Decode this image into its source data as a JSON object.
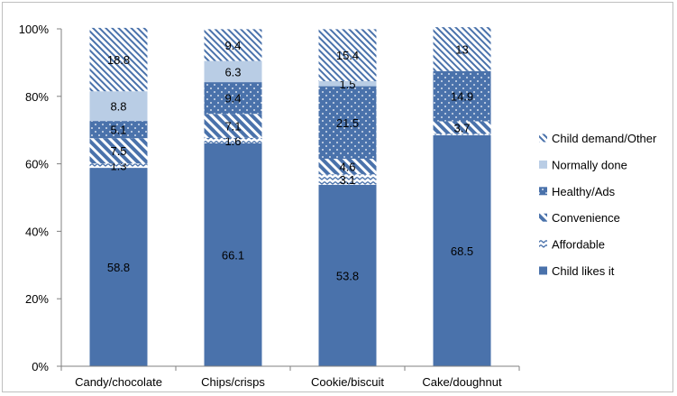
{
  "chart_data": {
    "type": "bar",
    "stacked": true,
    "percent_stacked": true,
    "categories": [
      "Candy/chocolate",
      "Chips/crisps",
      "Cookie/biscuit",
      "Cake/doughnut"
    ],
    "series": [
      {
        "name": "Child likes it",
        "values": [
          58.8,
          66.1,
          53.8,
          68.5
        ],
        "color": "#4a72ab",
        "pattern": "solid",
        "labels": [
          "58.8",
          "66.1",
          "53.8",
          "68.5"
        ]
      },
      {
        "name": "Affordable",
        "values": [
          1.3,
          1.6,
          3.1,
          0.4
        ],
        "color": "#4a72ab",
        "pattern": "wave",
        "labels": [
          "1.3",
          "1.6",
          "3.1",
          ""
        ]
      },
      {
        "name": "Convenience",
        "values": [
          7.5,
          7.1,
          4.6,
          3.7
        ],
        "color": "#4a72ab",
        "pattern": "wide-diagonal",
        "labels": [
          "7.5",
          "7.1",
          "4.6",
          "3.7"
        ]
      },
      {
        "name": "Healthy/Ads",
        "values": [
          5.1,
          9.4,
          21.5,
          14.9
        ],
        "color": "#4a72ab",
        "pattern": "dots",
        "labels": [
          "5.1",
          "9.4",
          "21.5",
          "14.9"
        ]
      },
      {
        "name": "Normally done",
        "values": [
          8.8,
          6.3,
          1.5,
          0
        ],
        "color": "#b9cde5",
        "pattern": "solid",
        "labels": [
          "8.8",
          "6.3",
          "1.5",
          ""
        ]
      },
      {
        "name": "Child demand/Other",
        "values": [
          18.8,
          9.4,
          15.4,
          13
        ],
        "color": "#4a72ab",
        "pattern": "light-diagonal",
        "labels": [
          "18.8",
          "9.4",
          "15.4",
          "13"
        ]
      }
    ],
    "y_ticks": [
      "0%",
      "20%",
      "40%",
      "60%",
      "80%",
      "100%"
    ],
    "ylim": [
      0,
      100
    ],
    "grid": false,
    "legend_position": "right"
  }
}
